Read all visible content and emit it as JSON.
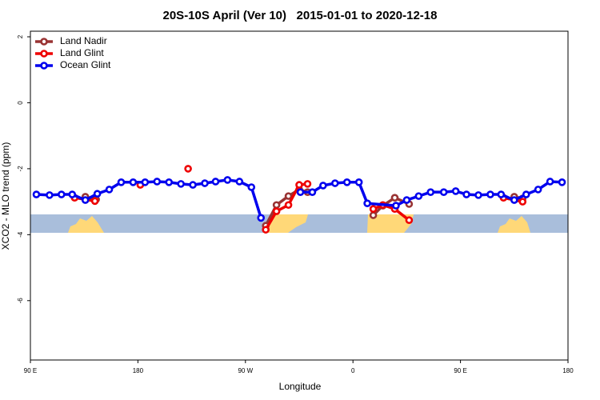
{
  "chart_data": {
    "type": "line",
    "title": "20S-10S April (Ver 10)   2015-01-01 to 2020-12-18",
    "x_label": "Longitude",
    "y_label": "XCO2 - MLO trend (ppm)",
    "xlim": [
      90,
      540
    ],
    "xticks": [
      {
        "value": 90,
        "label": "90 E"
      },
      {
        "value": 180,
        "label": "180"
      },
      {
        "value": 270,
        "label": "90 W"
      },
      {
        "value": 360,
        "label": "0"
      },
      {
        "value": 450,
        "label": "90 E"
      },
      {
        "value": 540,
        "label": "180"
      }
    ],
    "ylim": [
      -7.8,
      2.17
    ],
    "yticks": [
      2,
      0,
      -2,
      -4,
      -6
    ],
    "legend": "upper left",
    "series": [
      {
        "name": "Land Nadir",
        "color": "#993333",
        "x": [
          136,
          145,
          null,
          287,
          296,
          306,
          315,
          322,
          null,
          377,
          385,
          395,
          407,
          null,
          495,
          502
        ],
        "values": [
          -2.85,
          -2.93,
          null,
          -3.73,
          -3.1,
          -2.83,
          -2.63,
          -2.71,
          null,
          -3.41,
          -3.12,
          -2.88,
          -3.07,
          null,
          -2.85,
          -2.9
        ]
      },
      {
        "name": "Land Glint",
        "color": "#ee0000",
        "x": [
          127,
          144,
          null,
          182,
          null,
          222,
          null,
          287,
          296,
          306,
          315,
          322,
          null,
          377,
          385,
          395,
          407,
          null,
          486,
          502
        ],
        "values": [
          -2.88,
          -2.98,
          null,
          -2.49,
          null,
          -2.0,
          null,
          -3.85,
          -3.29,
          -3.1,
          -2.49,
          -2.46,
          null,
          -3.22,
          -3.1,
          -3.22,
          -3.56,
          null,
          -2.88,
          -3.0
        ]
      },
      {
        "name": "Ocean Glint",
        "color": "#0000ee",
        "x": [
          95,
          106,
          116,
          125,
          136,
          146,
          156,
          166,
          176,
          186,
          196,
          206,
          216,
          226,
          236,
          245,
          255,
          265,
          275,
          283,
          null,
          316,
          326,
          335,
          345,
          355,
          365,
          372,
          396,
          405,
          415,
          425,
          436,
          446,
          455,
          465,
          475,
          484,
          495,
          505,
          515,
          525,
          535
        ],
        "values": [
          -2.78,
          -2.8,
          -2.78,
          -2.78,
          -2.95,
          -2.76,
          -2.63,
          -2.41,
          -2.41,
          -2.41,
          -2.39,
          -2.41,
          -2.46,
          -2.49,
          -2.44,
          -2.39,
          -2.34,
          -2.39,
          -2.56,
          -3.49,
          null,
          -2.71,
          -2.71,
          -2.51,
          -2.44,
          -2.41,
          -2.41,
          -3.05,
          -3.12,
          -2.95,
          -2.83,
          -2.71,
          -2.71,
          -2.68,
          -2.78,
          -2.8,
          -2.78,
          -2.78,
          -2.95,
          -2.78,
          -2.63,
          -2.39,
          -2.41
        ]
      }
    ]
  }
}
